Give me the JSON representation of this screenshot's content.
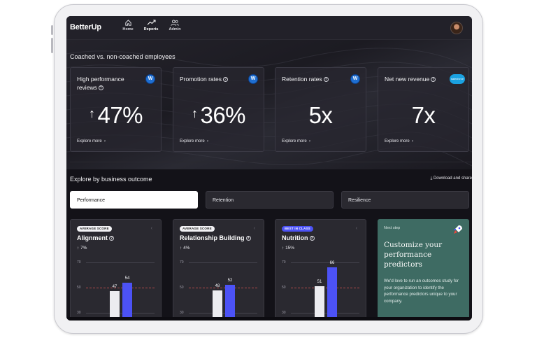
{
  "app": {
    "logo": "BetterUp"
  },
  "nav": [
    {
      "label": "Home",
      "icon": "home-icon"
    },
    {
      "label": "Reports",
      "icon": "trend-icon",
      "active": true
    },
    {
      "label": "Admin",
      "icon": "users-icon"
    }
  ],
  "coached_section": {
    "title": "Coached vs. non-coached employees",
    "cards": [
      {
        "title": "High performance reviews",
        "value": "47%",
        "has_arrow": true,
        "badge": "W",
        "explore": "Explore more"
      },
      {
        "title": "Promotion rates",
        "value": "36%",
        "has_arrow": true,
        "badge": "W",
        "explore": "Explore more"
      },
      {
        "title": "Retention rates",
        "value": "5x",
        "has_arrow": false,
        "badge": "W",
        "explore": "Explore more"
      },
      {
        "title": "Net new revenue",
        "value": "7x",
        "has_arrow": false,
        "badge": "salesforce",
        "explore": "Explore more"
      }
    ]
  },
  "outcome_section": {
    "title": "Explore by business outcome",
    "download_label": "Download and share",
    "tabs": [
      {
        "label": "Performance",
        "active": true
      },
      {
        "label": "Retention",
        "active": false
      },
      {
        "label": "Resilience",
        "active": false
      }
    ],
    "metrics": [
      {
        "pill": "AVERAGE SCORE",
        "pill_color": "white",
        "title": "Alignment",
        "delta": "7%",
        "axis": [
          "70",
          "50",
          "30"
        ],
        "bars": [
          47,
          54
        ]
      },
      {
        "pill": "AVERAGE SCORE",
        "pill_color": "white",
        "title": "Relationship Building",
        "delta": "4%",
        "axis": [
          "70",
          "50",
          "30"
        ],
        "bars": [
          48,
          52
        ]
      },
      {
        "pill": "BEST IN CLASS",
        "pill_color": "blue",
        "title": "Nutrition",
        "delta": "15%",
        "axis": [
          "70",
          "50",
          "30"
        ],
        "bars": [
          51,
          66
        ]
      }
    ],
    "next_step": {
      "label": "Next step",
      "title": "Customize your performance predictors",
      "body": "We'd love to run an outcomes study for your organization to identify the performance predictors unique to your company."
    }
  },
  "colors": {
    "accent": "#4c52f5",
    "bg": "#131218",
    "card": "#2a2930",
    "next_step_bg": "#3e6b63"
  }
}
